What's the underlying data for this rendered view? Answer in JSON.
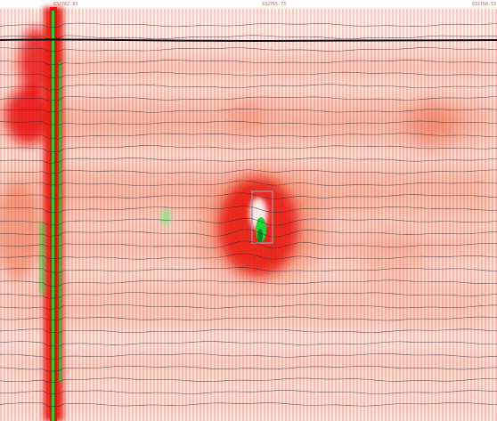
{
  "header": {
    "ticks": [
      "632762.93",
      "632765.73",
      "632768.53"
    ]
  },
  "colors": {
    "background": "#fdf1ea",
    "amplitude_strong": "#e8120c",
    "amplitude_mid": "#f07a5c",
    "amplitude_light": "#f8c9b6",
    "anomaly": "#22d43a",
    "trace_line": "#2a2a2a",
    "marker_box": "#9a9aa8"
  },
  "layers": {
    "horizontal_reflectors": 24,
    "vertical_column": "strong",
    "anomaly_marker": "rectangle"
  }
}
